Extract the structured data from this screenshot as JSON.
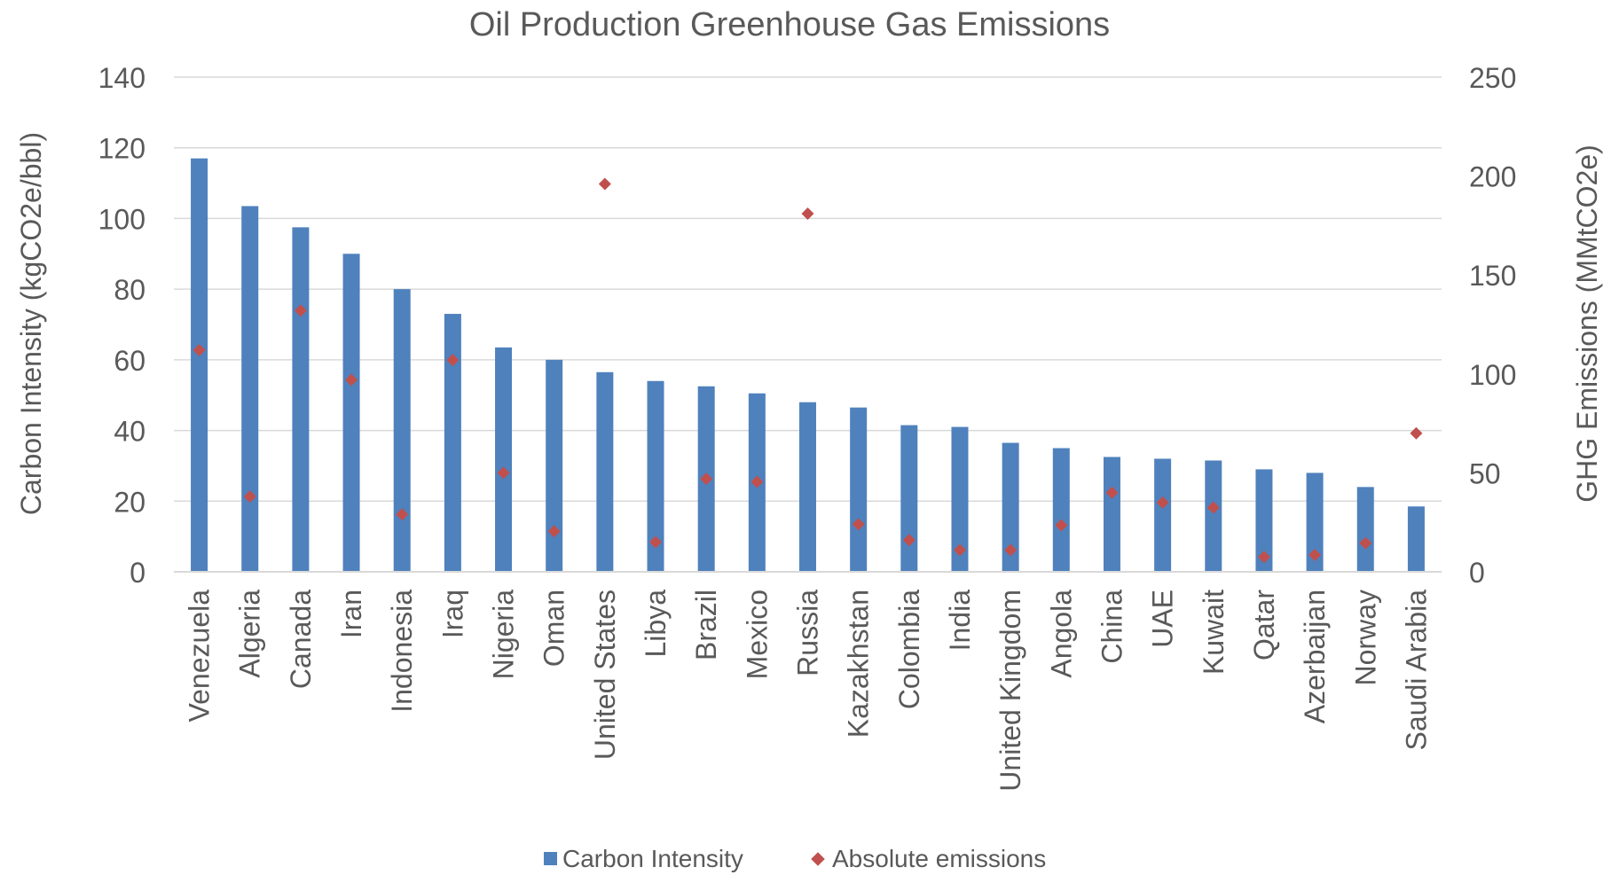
{
  "chart_data": {
    "type": "bar",
    "title": "Oil Production Greenhouse Gas Emissions",
    "ylabel": "Carbon Intensity (kgCO2e/bbl)",
    "y2label": "GHG Emissions (MMtCO2e)",
    "ylim": [
      0,
      140
    ],
    "y2lim": [
      0,
      250
    ],
    "yticks": [
      "0",
      "20",
      "40",
      "60",
      "80",
      "100",
      "120",
      "140"
    ],
    "y2ticks": [
      "0",
      "50",
      "100",
      "150",
      "200",
      "250"
    ],
    "grid": true,
    "legend_position": "bottom",
    "categories": [
      "Venezuela",
      "Algeria",
      "Canada",
      "Iran",
      "Indonesia",
      "Iraq",
      "Nigeria",
      "Oman",
      "United States",
      "Libya",
      "Brazil",
      "Mexico",
      "Russia",
      "Kazakhstan",
      "Colombia",
      "India",
      "United Kingdom",
      "Angola",
      "China",
      "UAE",
      "Kuwait",
      "Qatar",
      "Azerbaijan",
      "Norway",
      "Saudi Arabia"
    ],
    "series": [
      {
        "name": "Carbon Intensity",
        "type": "bar",
        "axis": "left",
        "color": "#4f81bd",
        "values": [
          117,
          103.5,
          97.5,
          90,
          80,
          73,
          63.5,
          60,
          56.5,
          54,
          52.5,
          50.5,
          48,
          46.5,
          41.5,
          41,
          36.5,
          35,
          32.5,
          32,
          31.5,
          29,
          28,
          24,
          18.5
        ]
      },
      {
        "name": "Absolute emissions",
        "type": "scatter",
        "axis": "right",
        "color": "#c0504d",
        "values": [
          112,
          38,
          132,
          97,
          29,
          107,
          50,
          20.5,
          196,
          15,
          47,
          45.5,
          181,
          24,
          16,
          11,
          11,
          23.5,
          40,
          35,
          32.5,
          7.5,
          8.5,
          14.5,
          70
        ]
      }
    ]
  }
}
